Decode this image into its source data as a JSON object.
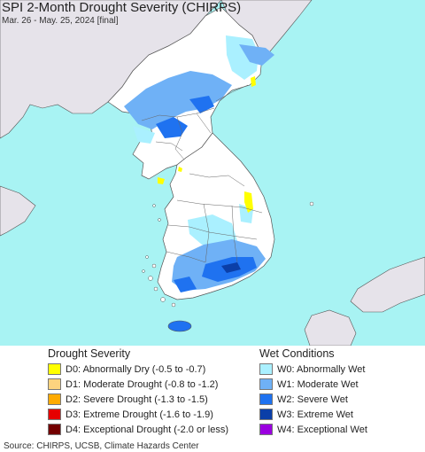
{
  "title": "SPI 2-Month Drought Severity (CHIRPS)",
  "subtitle": "Mar. 26 - May. 25, 2024 [final]",
  "colors": {
    "ocean": "#a8f3f3",
    "land_other": "#e6e3ea",
    "land_korea": "#ffffff",
    "border": "#555555"
  },
  "legend_drought": {
    "title": "Drought Severity",
    "items": [
      {
        "label": "D0: Abnormally Dry (-0.5 to -0.7)",
        "color": "#ffff00"
      },
      {
        "label": "D1: Moderate Drought (-0.8 to -1.2)",
        "color": "#fcd37f"
      },
      {
        "label": "D2: Severe Drought (-1.3 to -1.5)",
        "color": "#ffaa00"
      },
      {
        "label": "D3: Extreme Drought (-1.6 to -1.9)",
        "color": "#e60000"
      },
      {
        "label": "D4: Exceptional Drought (-2.0 or less)",
        "color": "#730000"
      }
    ]
  },
  "legend_wet": {
    "title": "Wet Conditions",
    "items": [
      {
        "label": "W0: Abnormally Wet",
        "color": "#aaf0ff"
      },
      {
        "label": "W1: Moderate Wet",
        "color": "#6fb1f6"
      },
      {
        "label": "W2: Severe Wet",
        "color": "#1f72f0"
      },
      {
        "label": "W3: Extreme Wet",
        "color": "#0b3fa8"
      },
      {
        "label": "W4: Exceptional Wet",
        "color": "#9b00e0"
      }
    ]
  },
  "source": "Source: CHIRPS, UCSB, Climate Hazards Center"
}
